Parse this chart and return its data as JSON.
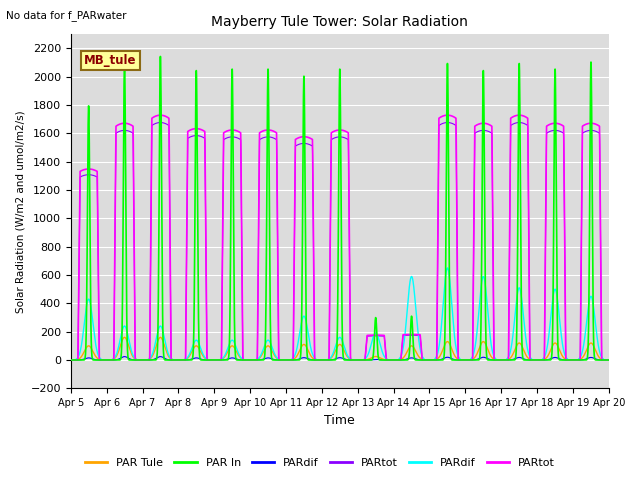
{
  "title": "Mayberry Tule Tower: Solar Radiation",
  "subtitle": "No data for f_PARwater",
  "ylabel": "Solar Radiation (W/m2 and umol/m2/s)",
  "xlabel": "Time",
  "xlim_days": [
    5,
    20
  ],
  "ylim": [
    -200,
    2300
  ],
  "yticks": [
    -200,
    0,
    200,
    400,
    600,
    800,
    1000,
    1200,
    1400,
    1600,
    1800,
    2000,
    2200
  ],
  "xtick_labels": [
    "Apr 5",
    "Apr 6",
    "Apr 7",
    "Apr 8",
    "Apr 9",
    "Apr 10",
    "Apr 11",
    "Apr 12",
    "Apr 13",
    "Apr 14",
    "Apr 15",
    "Apr 16",
    "Apr 17",
    "Apr 18",
    "Apr 19",
    "Apr 20"
  ],
  "legend_labels": [
    "PAR Tule",
    "PAR In",
    "PARdif",
    "PARtot",
    "PARdif",
    "PARtot"
  ],
  "legend_colors": [
    "#FFA500",
    "#00FF00",
    "#0000FF",
    "#8B00FF",
    "#00FFFF",
    "#FF00FF"
  ],
  "line_colors": {
    "PAR_Tule": "#FFA500",
    "PAR_In": "#00FF00",
    "PARdif_blue": "#0000FF",
    "PARtot_purple": "#8B00FF",
    "PARdif_cyan": "#00FFFF",
    "PARtot_magenta": "#FF00FF"
  },
  "bg_color": "#DCDCDC",
  "legend_box_color": "#FFFF99",
  "legend_box_label": "MB_tule",
  "n_days": 15,
  "day_start": 5,
  "peaks_green": [
    1800,
    2100,
    2150,
    2050,
    2060,
    2060,
    2010,
    2060,
    300,
    310,
    2100,
    2050,
    2100,
    2060,
    2110
  ],
  "peaks_magenta": [
    1420,
    1760,
    1820,
    1720,
    1710,
    1710,
    1660,
    1710,
    185,
    190,
    1820,
    1760,
    1820,
    1760,
    1760
  ],
  "peaks_cyan": [
    430,
    240,
    240,
    140,
    140,
    140,
    310,
    160,
    190,
    590,
    650,
    590,
    510,
    500,
    450
  ],
  "peaks_orange": [
    100,
    160,
    160,
    100,
    100,
    100,
    110,
    110,
    25,
    100,
    130,
    130,
    120,
    120,
    120
  ],
  "figsize": [
    6.4,
    4.8
  ],
  "dpi": 100
}
